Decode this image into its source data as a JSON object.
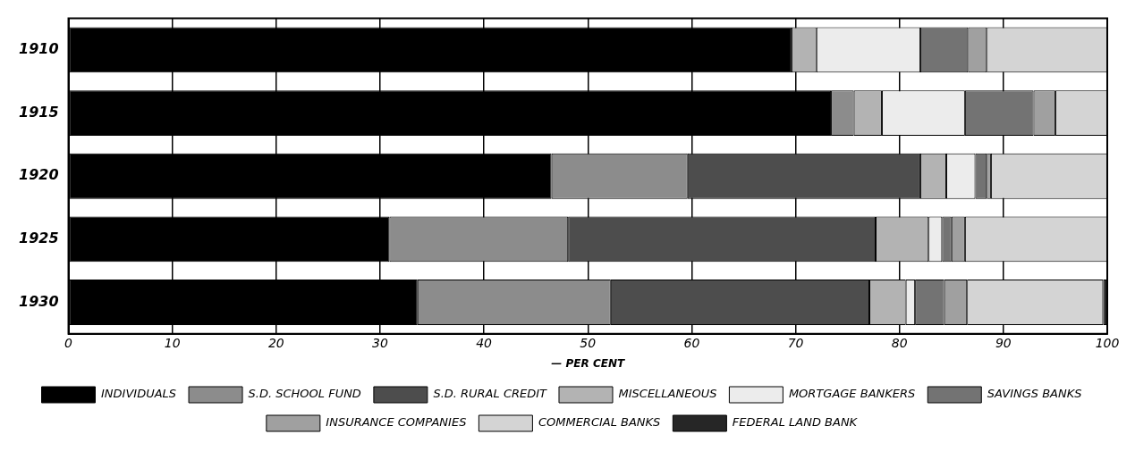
{
  "chart_data": {
    "type": "bar",
    "orientation": "horizontal",
    "stacked": true,
    "xlabel": "— PER CENT",
    "categories": [
      "1910",
      "1915",
      "1920",
      "1925",
      "1930"
    ],
    "xlim": [
      0,
      100
    ],
    "xticks": [
      0,
      10,
      20,
      30,
      40,
      50,
      60,
      70,
      80,
      90,
      100
    ],
    "grid": "x",
    "legend": "bottom",
    "series": [
      {
        "name": "INDIVIDUALS",
        "color": "#000000",
        "values": [
          69.6,
          73.4,
          46.5,
          30.9,
          33.6
        ]
      },
      {
        "name": "S.D. SCHOOL FUND",
        "color": "#8c8c8c",
        "values": [
          null,
          2.2,
          13.1,
          17.2,
          18.6
        ]
      },
      {
        "name": "S.D. RURAL CREDIT",
        "color": "#4d4d4d",
        "values": [
          null,
          null,
          22.4,
          29.6,
          24.9
        ]
      },
      {
        "name": "MISCELLANEOUS",
        "color": "#b3b3b3",
        "values": [
          2.4,
          2.7,
          2.5,
          5.1,
          3.5
        ]
      },
      {
        "name": "MORTGAGE BANKERS",
        "color": "#ececec",
        "values": [
          10.0,
          8.0,
          2.8,
          1.3,
          0.9
        ]
      },
      {
        "name": "SAVINGS BANKS",
        "color": "#737373",
        "values": [
          4.6,
          6.6,
          1.1,
          0.9,
          2.8
        ]
      },
      {
        "name": "INSURANCE COMPANIES",
        "color": "#a0a0a0",
        "values": [
          1.8,
          2.1,
          0.4,
          1.3,
          2.2
        ]
      },
      {
        "name": "COMMERCIAL BANKS",
        "color": "#d4d4d4",
        "values": [
          11.6,
          5.0,
          11.2,
          13.7,
          13.1
        ]
      },
      {
        "name": "FEDERAL LAND BANK",
        "color": "#262626",
        "values": [
          null,
          null,
          null,
          null,
          0.4
        ]
      }
    ]
  }
}
